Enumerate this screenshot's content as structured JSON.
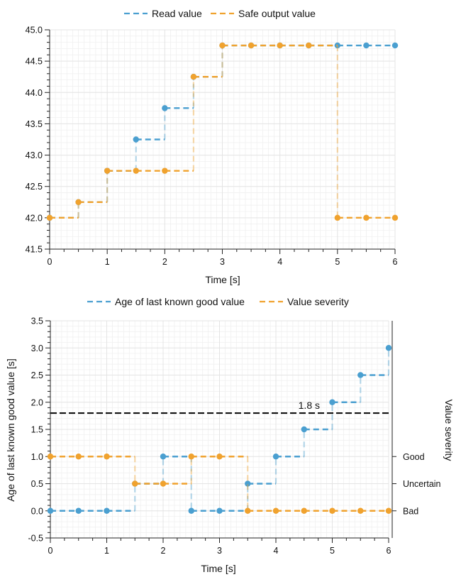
{
  "colors": {
    "blue": "#4a9fd0",
    "orange": "#f0a22e",
    "grid": "#e4e4e4",
    "grid_minor": "#f0f0f0",
    "axis": "#222222",
    "threshold": "#111111"
  },
  "chart_data": [
    {
      "type": "line",
      "step": "post",
      "xlabel": "Time [s]",
      "ylabel": "",
      "xlim": [
        0,
        6
      ],
      "ylim": [
        41.5,
        45.0
      ],
      "xticks": [
        "0",
        "1",
        "2",
        "3",
        "4",
        "5",
        "6"
      ],
      "yticks": [
        "41.5",
        "42.0",
        "42.5",
        "43.0",
        "43.5",
        "44.0",
        "44.5",
        "45.0"
      ],
      "legend_position": "top-center",
      "grid": true,
      "x": [
        0,
        0.5,
        1,
        1.5,
        2,
        2.5,
        3,
        3.5,
        4,
        4.5,
        5,
        5.5,
        6
      ],
      "series": [
        {
          "name": "Read value",
          "color": "blue",
          "values": [
            42.0,
            42.25,
            42.75,
            43.25,
            43.75,
            44.25,
            44.75,
            44.75,
            44.75,
            44.75,
            44.75,
            44.75,
            44.75
          ]
        },
        {
          "name": "Safe output value",
          "color": "orange",
          "values": [
            42.0,
            42.25,
            42.75,
            42.75,
            42.75,
            44.25,
            44.75,
            44.75,
            44.75,
            44.75,
            42.0,
            42.0,
            42.0
          ]
        }
      ]
    },
    {
      "type": "line",
      "step": "post",
      "xlabel": "Time [s]",
      "ylabel": "Age of last known good value [s]",
      "y2label": "Value severity",
      "xlim": [
        0,
        6
      ],
      "ylim": [
        -0.5,
        3.5
      ],
      "xticks": [
        "0",
        "1",
        "2",
        "3",
        "4",
        "5",
        "6"
      ],
      "yticks": [
        "-0.5",
        "0.0",
        "0.5",
        "1.0",
        "1.5",
        "2.0",
        "2.5",
        "3.0",
        "3.5"
      ],
      "y2ticks": [
        {
          "label": "Good",
          "y": 1.0
        },
        {
          "label": "Uncertain",
          "y": 0.5
        },
        {
          "label": "Bad",
          "y": 0.0
        }
      ],
      "legend_position": "top-center",
      "grid": true,
      "threshold": {
        "y": 1.8,
        "label": "1.8 s"
      },
      "x": [
        0,
        0.5,
        1,
        1.5,
        2,
        2.5,
        3,
        3.5,
        4,
        4.5,
        5,
        5.5,
        6
      ],
      "series": [
        {
          "name": "Age of last known good value",
          "color": "blue",
          "values": [
            0,
            0,
            0,
            0.5,
            1.0,
            0,
            0,
            0.5,
            1.0,
            1.5,
            2.0,
            2.5,
            3.0
          ]
        },
        {
          "name": "Value severity",
          "color": "orange",
          "values": [
            1.0,
            1.0,
            1.0,
            0.5,
            0.5,
            1.0,
            1.0,
            0,
            0,
            0,
            0,
            0,
            0
          ]
        }
      ]
    }
  ]
}
